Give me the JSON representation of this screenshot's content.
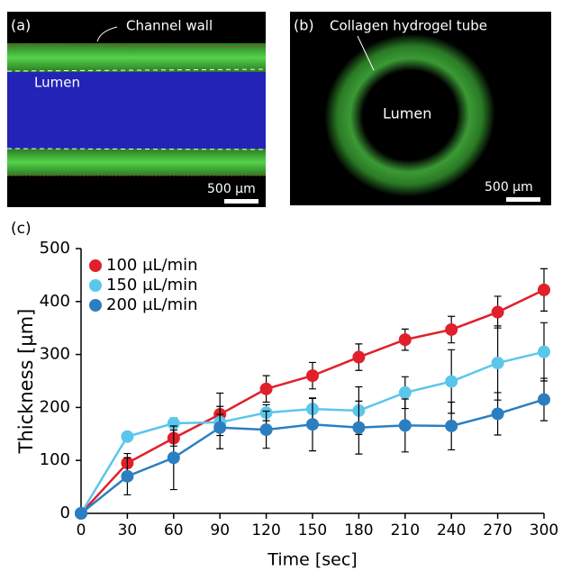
{
  "panels": {
    "a": {
      "label": "(a)",
      "annotation": "Channel wall",
      "region": "Lumen",
      "scale_bar": "500 µm"
    },
    "b": {
      "label": "(b)",
      "annotation": "Collagen hydrogel tube",
      "region": "Lumen",
      "scale_bar": "500 µm"
    },
    "c": {
      "label": "(c)"
    }
  },
  "chart_data": {
    "type": "line",
    "x_label": "Time [sec]",
    "y_label": "Thickness [µm]",
    "x": [
      0,
      30,
      60,
      90,
      120,
      150,
      180,
      210,
      240,
      270,
      300
    ],
    "xlim": [
      0,
      300
    ],
    "xticks": [
      0,
      30,
      60,
      90,
      120,
      150,
      180,
      210,
      240,
      270,
      300
    ],
    "ylim": [
      0,
      500
    ],
    "yticks": [
      0,
      100,
      200,
      300,
      400,
      500
    ],
    "legend": "upper-left",
    "grid": false,
    "series": [
      {
        "name": "100 µL/min",
        "color": "#e0202b",
        "values": [
          0,
          95,
          142,
          187,
          235,
          260,
          295,
          328,
          347,
          380,
          422
        ],
        "errors": [
          0,
          18,
          15,
          40,
          25,
          25,
          25,
          20,
          25,
          30,
          40
        ]
      },
      {
        "name": "150 µL/min",
        "color": "#5bc6ec",
        "values": [
          0,
          145,
          170,
          172,
          190,
          197,
          194,
          228,
          249,
          284,
          305
        ],
        "errors": [
          0,
          8,
          10,
          15,
          15,
          20,
          45,
          30,
          60,
          70,
          55
        ]
      },
      {
        "name": "200 µL/min",
        "color": "#2b7fc1",
        "values": [
          0,
          70,
          105,
          162,
          158,
          168,
          162,
          166,
          165,
          188,
          215
        ],
        "errors": [
          0,
          35,
          60,
          40,
          35,
          50,
          50,
          50,
          45,
          40,
          40
        ]
      }
    ]
  }
}
